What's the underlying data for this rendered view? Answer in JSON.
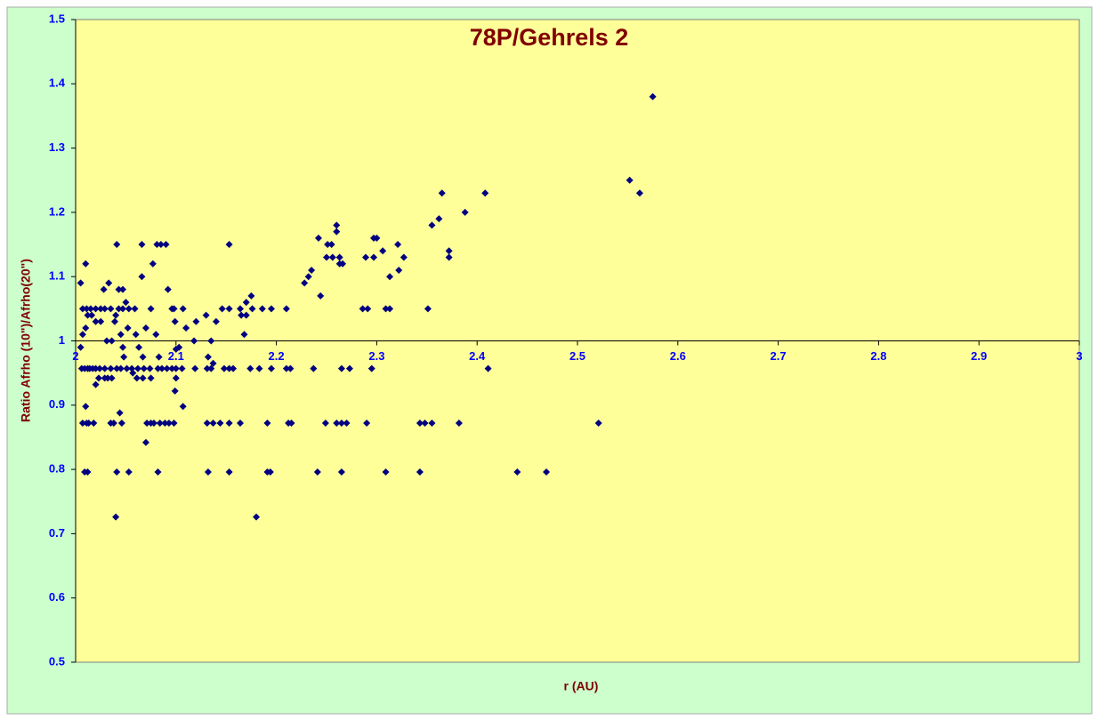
{
  "chart_data": {
    "type": "scatter",
    "title": "78P/Gehrels 2",
    "xlabel": "r (AU)",
    "ylabel": "Ratio Afrho (10\")/Afrho(20\")",
    "color": "#000080",
    "xlim": [
      2,
      3
    ],
    "xticks": [
      2,
      2.1,
      2.2,
      2.3,
      2.4,
      2.5,
      2.6,
      2.7,
      2.8,
      2.9,
      3
    ],
    "ylim": [
      0.5,
      1.5
    ],
    "yticks": [
      0.5,
      0.6,
      0.7,
      0.8,
      0.9,
      1,
      1.1,
      1.2,
      1.3,
      1.4,
      1.5
    ],
    "x": [
      2.009,
      2.012,
      2.041,
      2.053,
      2.082,
      2.132,
      2.153,
      2.191,
      2.194,
      2.241,
      2.265,
      2.309,
      2.343,
      2.44,
      2.469,
      2.007,
      2.011,
      2.013,
      2.018,
      2.035,
      2.038,
      2.046,
      2.071,
      2.075,
      2.078,
      2.084,
      2.089,
      2.093,
      2.098,
      2.131,
      2.137,
      2.144,
      2.153,
      2.164,
      2.191,
      2.212,
      2.215,
      2.249,
      2.26,
      2.265,
      2.27,
      2.29,
      2.343,
      2.348,
      2.355,
      2.382,
      2.521,
      2.006,
      2.009,
      2.012,
      2.014,
      2.017,
      2.02,
      2.024,
      2.029,
      2.035,
      2.041,
      2.045,
      2.051,
      2.056,
      2.062,
      2.068,
      2.074,
      2.082,
      2.086,
      2.091,
      2.096,
      2.1,
      2.106,
      2.119,
      2.131,
      2.135,
      2.148,
      2.153,
      2.157,
      2.174,
      2.183,
      2.195,
      2.21,
      2.214,
      2.237,
      2.265,
      2.273,
      2.295,
      2.411,
      2.007,
      2.011,
      2.015,
      2.02,
      2.025,
      2.029,
      2.035,
      2.043,
      2.047,
      2.053,
      2.059,
      2.075,
      2.098,
      2.107,
      2.146,
      2.153,
      2.164,
      2.176,
      2.186,
      2.195,
      2.21,
      2.286,
      2.291,
      2.309,
      2.313,
      2.351,
      2.041,
      2.066,
      2.081,
      2.085,
      2.09,
      2.153,
      2.251,
      2.255,
      2.321,
      2.005,
      2.01,
      2.028,
      2.033,
      2.039,
      2.043,
      2.047,
      2.066,
      2.077,
      2.092,
      2.096,
      2.099,
      2.11,
      2.12,
      2.13,
      2.14,
      2.17,
      2.175,
      2.17,
      2.165,
      2.168,
      2.05,
      2.06,
      2.07,
      2.08,
      2.063,
      2.067,
      2.083,
      2.075,
      2.061,
      2.067,
      2.036,
      2.032,
      2.029,
      2.099,
      2.1,
      2.107,
      2.01,
      2.048,
      2.057,
      2.044,
      2.04,
      2.07,
      2.18,
      2.02,
      2.023,
      2.132,
      2.137,
      2.1,
      2.103,
      2.135,
      2.118,
      2.005,
      2.007,
      2.01,
      2.012,
      2.016,
      2.02,
      2.025,
      2.031,
      2.036,
      2.04,
      2.052,
      2.045,
      2.047,
      2.228,
      2.232,
      2.235,
      2.242,
      2.244,
      2.25,
      2.256,
      2.26,
      2.26,
      2.263,
      2.266,
      2.263,
      2.289,
      2.297,
      2.297,
      2.3,
      2.306,
      2.313,
      2.322,
      2.327,
      2.362,
      2.365,
      2.355,
      2.372,
      2.372,
      2.388,
      2.408,
      2.552,
      2.562,
      2.575
    ],
    "values": [
      0.796,
      0.796,
      0.796,
      0.796,
      0.796,
      0.796,
      0.796,
      0.796,
      0.796,
      0.796,
      0.796,
      0.796,
      0.796,
      0.796,
      0.796,
      0.872,
      0.872,
      0.872,
      0.872,
      0.872,
      0.872,
      0.872,
      0.872,
      0.872,
      0.872,
      0.872,
      0.872,
      0.872,
      0.872,
      0.872,
      0.872,
      0.872,
      0.872,
      0.872,
      0.872,
      0.872,
      0.872,
      0.872,
      0.872,
      0.872,
      0.872,
      0.872,
      0.872,
      0.872,
      0.872,
      0.872,
      0.872,
      0.957,
      0.957,
      0.957,
      0.957,
      0.957,
      0.957,
      0.957,
      0.957,
      0.957,
      0.957,
      0.957,
      0.957,
      0.957,
      0.957,
      0.957,
      0.957,
      0.957,
      0.957,
      0.957,
      0.957,
      0.957,
      0.957,
      0.957,
      0.957,
      0.957,
      0.957,
      0.957,
      0.957,
      0.957,
      0.957,
      0.957,
      0.957,
      0.957,
      0.957,
      0.957,
      0.957,
      0.957,
      0.957,
      1.05,
      1.05,
      1.05,
      1.05,
      1.05,
      1.05,
      1.05,
      1.05,
      1.05,
      1.05,
      1.05,
      1.05,
      1.05,
      1.05,
      1.05,
      1.05,
      1.05,
      1.05,
      1.05,
      1.05,
      1.05,
      1.05,
      1.05,
      1.05,
      1.05,
      1.05,
      1.15,
      1.15,
      1.15,
      1.15,
      1.15,
      1.15,
      1.15,
      1.15,
      1.15,
      1.09,
      1.12,
      1.08,
      1.09,
      1.03,
      1.08,
      1.08,
      1.1,
      1.12,
      1.08,
      1.05,
      1.03,
      1.02,
      1.03,
      1.04,
      1.03,
      1.06,
      1.07,
      1.04,
      1.04,
      1.01,
      1.06,
      1.01,
      1.02,
      1.01,
      0.99,
      0.975,
      0.975,
      0.942,
      0.942,
      0.942,
      0.942,
      0.942,
      0.942,
      0.922,
      0.942,
      0.898,
      0.898,
      0.975,
      0.95,
      0.888,
      0.726,
      0.842,
      0.726,
      0.932,
      0.942,
      0.975,
      0.965,
      0.987,
      0.99,
      1.0,
      1.0,
      0.99,
      1.01,
      1.02,
      1.04,
      1.04,
      1.03,
      1.03,
      1.0,
      1.0,
      1.04,
      1.02,
      1.01,
      0.99,
      1.09,
      1.1,
      1.11,
      1.16,
      1.07,
      1.13,
      1.13,
      1.18,
      1.17,
      1.12,
      1.12,
      1.13,
      1.13,
      1.13,
      1.16,
      1.16,
      1.14,
      1.1,
      1.11,
      1.13,
      1.19,
      1.23,
      1.18,
      1.13,
      1.14,
      1.2,
      1.23,
      1.25,
      1.23,
      1.38
    ]
  }
}
